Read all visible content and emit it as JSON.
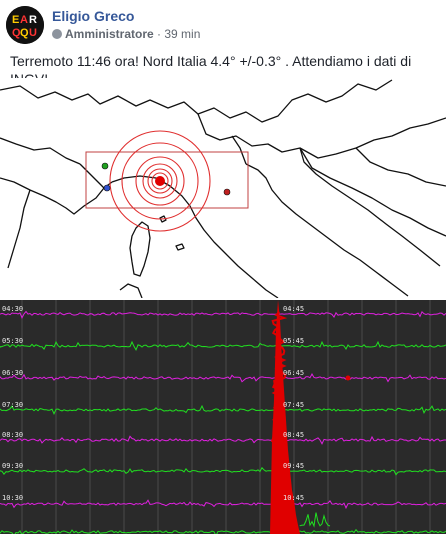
{
  "post": {
    "author": "Eligio Greco",
    "role": "Amministratore",
    "separator": "·",
    "time": "39 min",
    "text": "Terremoto 11:46 ora! Nord Italia 4.4° +/-0.3° . Attendiamo i dati di INGV!",
    "avatar_letters": [
      "E",
      "A",
      "R",
      "Q",
      "Q",
      "U"
    ]
  },
  "colors": {
    "link": "#365899",
    "epicenter": "#e00000",
    "trace_magenta": "#e020e0",
    "trace_green": "#20e020"
  },
  "seismogram": {
    "left_labels": [
      "04:30",
      "05:30",
      "06:30",
      "07:30",
      "08:30",
      "09:30",
      "10:30"
    ],
    "right_labels": [
      "04:45",
      "05:45",
      "06:45",
      "07:45",
      "08:45",
      "09:45",
      "10:45"
    ]
  }
}
